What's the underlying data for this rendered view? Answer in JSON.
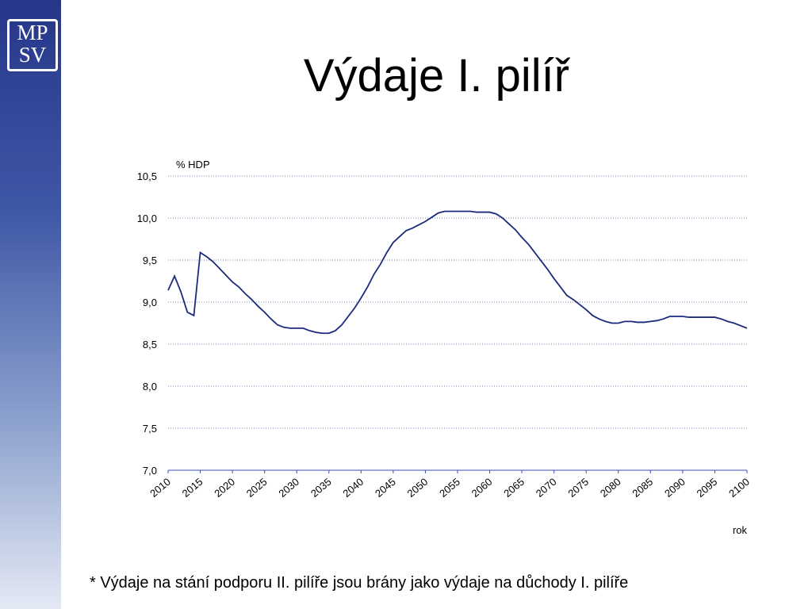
{
  "logo": [
    "MP",
    "SV"
  ],
  "chart_data": {
    "type": "line",
    "title": "Výdaje I. pilíř",
    "y_label": "% HDP",
    "x_label": "rok",
    "footnote": "* Výdaje na stání podporu II. pilíře jsou brány jako výdaje na důchody I. pilíře",
    "x": [
      2010,
      2011,
      2012,
      2013,
      2014,
      2015,
      2016,
      2017,
      2018,
      2019,
      2020,
      2021,
      2022,
      2023,
      2024,
      2025,
      2026,
      2027,
      2028,
      2029,
      2030,
      2031,
      2032,
      2033,
      2034,
      2035,
      2036,
      2037,
      2038,
      2039,
      2040,
      2041,
      2042,
      2043,
      2044,
      2045,
      2046,
      2047,
      2048,
      2049,
      2050,
      2051,
      2052,
      2053,
      2054,
      2055,
      2056,
      2057,
      2058,
      2059,
      2060,
      2061,
      2062,
      2063,
      2064,
      2065,
      2066,
      2067,
      2068,
      2069,
      2070,
      2071,
      2072,
      2073,
      2074,
      2075,
      2076,
      2077,
      2078,
      2079,
      2080,
      2081,
      2082,
      2083,
      2084,
      2085,
      2086,
      2087,
      2088,
      2089,
      2090,
      2091,
      2092,
      2093,
      2094,
      2095,
      2096,
      2097,
      2098,
      2099,
      2100
    ],
    "series": [
      {
        "name": "Výdaje I. pilíř",
        "color": "#1c2a7e",
        "values": [
          9.14,
          9.31,
          9.12,
          8.88,
          8.84,
          9.59,
          9.54,
          9.48,
          9.4,
          9.32,
          9.24,
          9.18,
          9.1,
          9.03,
          8.95,
          8.88,
          8.8,
          8.73,
          8.7,
          8.69,
          8.69,
          8.69,
          8.66,
          8.64,
          8.63,
          8.63,
          8.66,
          8.73,
          8.83,
          8.93,
          9.05,
          9.18,
          9.33,
          9.45,
          9.59,
          9.71,
          9.78,
          9.85,
          9.88,
          9.92,
          9.96,
          10.01,
          10.06,
          10.08,
          10.08,
          10.08,
          10.08,
          10.08,
          10.07,
          10.07,
          10.07,
          10.05,
          10.0,
          9.93,
          9.86,
          9.77,
          9.69,
          9.59,
          9.49,
          9.39,
          9.28,
          9.18,
          9.08,
          9.03,
          8.97,
          8.91,
          8.84,
          8.8,
          8.77,
          8.75,
          8.75,
          8.77,
          8.77,
          8.76,
          8.76,
          8.77,
          8.78,
          8.8,
          8.83,
          8.83,
          8.83,
          8.82,
          8.82,
          8.82,
          8.82,
          8.82,
          8.8,
          8.77,
          8.75,
          8.72,
          8.69
        ]
      }
    ],
    "xlim": [
      2010,
      2100
    ],
    "xticks": [
      2010,
      2015,
      2020,
      2025,
      2030,
      2035,
      2040,
      2045,
      2050,
      2055,
      2060,
      2065,
      2070,
      2075,
      2080,
      2085,
      2090,
      2095,
      2100
    ],
    "ylim": [
      7.0,
      10.5
    ],
    "yticks": [
      {
        "value": 7.0,
        "label": "7,0"
      },
      {
        "value": 7.5,
        "label": "7,5"
      },
      {
        "value": 8.0,
        "label": "8,0"
      },
      {
        "value": 8.5,
        "label": "8,5"
      },
      {
        "value": 9.0,
        "label": "9,0"
      },
      {
        "value": 9.5,
        "label": "9,5"
      },
      {
        "value": 10.0,
        "label": "10,0"
      },
      {
        "value": 10.5,
        "label": "10,5"
      }
    ],
    "grid": true
  }
}
